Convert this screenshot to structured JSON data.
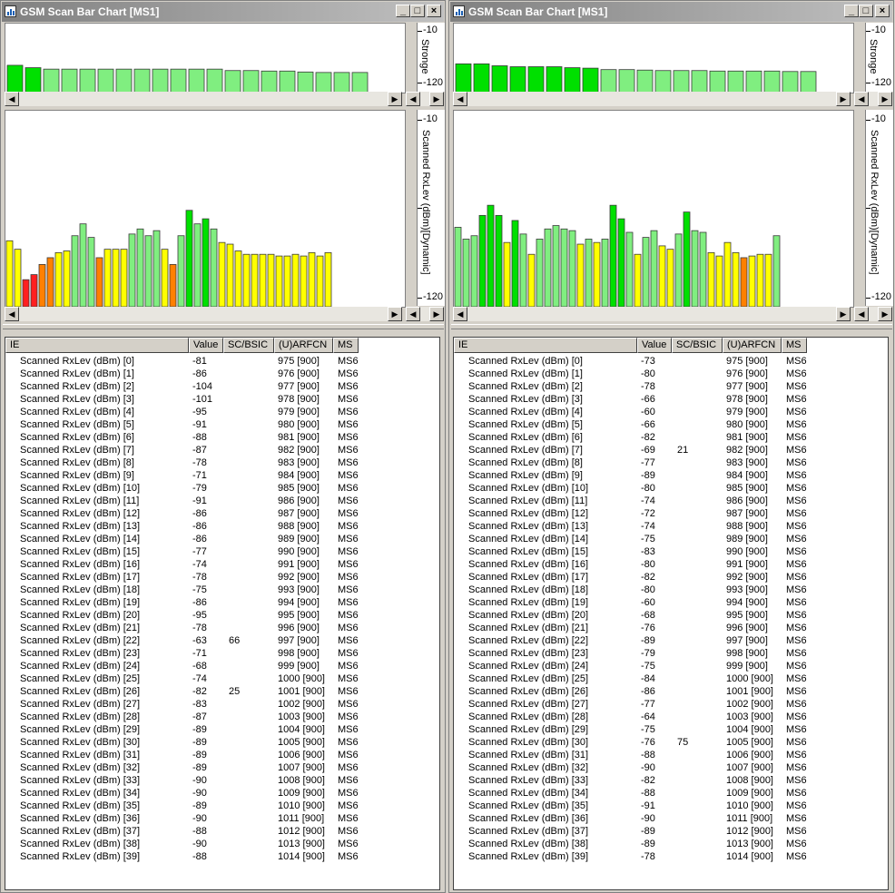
{
  "colors": {
    "strong": "#00e000",
    "good": "#80ee80",
    "medium": "#ffff00",
    "weak": "#ff8000",
    "poor": "#ff2020",
    "frame": "#d4d0c8"
  },
  "icons": {
    "window": "bar-chart-app-icon",
    "minimize": "minimize-icon",
    "maximize": "maximize-icon",
    "close": "close-icon",
    "left": "arrow-left-icon",
    "right": "arrow-right-icon"
  },
  "windows": [
    {
      "title": "GSM Scan Bar Chart [MS1]",
      "strongest_axis": {
        "label": "Stronge",
        "top": "-10",
        "bottom": "-120"
      },
      "scanned_axis": {
        "label": "Scanned RxLev (dBm)[Dynamic]",
        "top": "-10",
        "bottom": "-120"
      },
      "columns": [
        "IE",
        "Value",
        "SC/BSIC",
        "(U)ARFCN",
        "MS"
      ],
      "rows": [
        {
          "ie": "Scanned RxLev (dBm) [0]",
          "value": "-81",
          "bsic": "",
          "arfcn": "975 [900]",
          "ms": "MS6"
        },
        {
          "ie": "Scanned RxLev (dBm) [1]",
          "value": "-86",
          "bsic": "",
          "arfcn": "976 [900]",
          "ms": "MS6"
        },
        {
          "ie": "Scanned RxLev (dBm) [2]",
          "value": "-104",
          "bsic": "",
          "arfcn": "977 [900]",
          "ms": "MS6"
        },
        {
          "ie": "Scanned RxLev (dBm) [3]",
          "value": "-101",
          "bsic": "",
          "arfcn": "978 [900]",
          "ms": "MS6"
        },
        {
          "ie": "Scanned RxLev (dBm) [4]",
          "value": "-95",
          "bsic": "",
          "arfcn": "979 [900]",
          "ms": "MS6"
        },
        {
          "ie": "Scanned RxLev (dBm) [5]",
          "value": "-91",
          "bsic": "",
          "arfcn": "980 [900]",
          "ms": "MS6"
        },
        {
          "ie": "Scanned RxLev (dBm) [6]",
          "value": "-88",
          "bsic": "",
          "arfcn": "981 [900]",
          "ms": "MS6"
        },
        {
          "ie": "Scanned RxLev (dBm) [7]",
          "value": "-87",
          "bsic": "",
          "arfcn": "982 [900]",
          "ms": "MS6"
        },
        {
          "ie": "Scanned RxLev (dBm) [8]",
          "value": "-78",
          "bsic": "",
          "arfcn": "983 [900]",
          "ms": "MS6"
        },
        {
          "ie": "Scanned RxLev (dBm) [9]",
          "value": "-71",
          "bsic": "",
          "arfcn": "984 [900]",
          "ms": "MS6"
        },
        {
          "ie": "Scanned RxLev (dBm) [10]",
          "value": "-79",
          "bsic": "",
          "arfcn": "985 [900]",
          "ms": "MS6"
        },
        {
          "ie": "Scanned RxLev (dBm) [11]",
          "value": "-91",
          "bsic": "",
          "arfcn": "986 [900]",
          "ms": "MS6"
        },
        {
          "ie": "Scanned RxLev (dBm) [12]",
          "value": "-86",
          "bsic": "",
          "arfcn": "987 [900]",
          "ms": "MS6"
        },
        {
          "ie": "Scanned RxLev (dBm) [13]",
          "value": "-86",
          "bsic": "",
          "arfcn": "988 [900]",
          "ms": "MS6"
        },
        {
          "ie": "Scanned RxLev (dBm) [14]",
          "value": "-86",
          "bsic": "",
          "arfcn": "989 [900]",
          "ms": "MS6"
        },
        {
          "ie": "Scanned RxLev (dBm) [15]",
          "value": "-77",
          "bsic": "",
          "arfcn": "990 [900]",
          "ms": "MS6"
        },
        {
          "ie": "Scanned RxLev (dBm) [16]",
          "value": "-74",
          "bsic": "",
          "arfcn": "991 [900]",
          "ms": "MS6"
        },
        {
          "ie": "Scanned RxLev (dBm) [17]",
          "value": "-78",
          "bsic": "",
          "arfcn": "992 [900]",
          "ms": "MS6"
        },
        {
          "ie": "Scanned RxLev (dBm) [18]",
          "value": "-75",
          "bsic": "",
          "arfcn": "993 [900]",
          "ms": "MS6"
        },
        {
          "ie": "Scanned RxLev (dBm) [19]",
          "value": "-86",
          "bsic": "",
          "arfcn": "994 [900]",
          "ms": "MS6"
        },
        {
          "ie": "Scanned RxLev (dBm) [20]",
          "value": "-95",
          "bsic": "",
          "arfcn": "995 [900]",
          "ms": "MS6"
        },
        {
          "ie": "Scanned RxLev (dBm) [21]",
          "value": "-78",
          "bsic": "",
          "arfcn": "996 [900]",
          "ms": "MS6"
        },
        {
          "ie": "Scanned RxLev (dBm) [22]",
          "value": "-63",
          "bsic": "66",
          "arfcn": "997 [900]",
          "ms": "MS6"
        },
        {
          "ie": "Scanned RxLev (dBm) [23]",
          "value": "-71",
          "bsic": "",
          "arfcn": "998 [900]",
          "ms": "MS6"
        },
        {
          "ie": "Scanned RxLev (dBm) [24]",
          "value": "-68",
          "bsic": "",
          "arfcn": "999 [900]",
          "ms": "MS6"
        },
        {
          "ie": "Scanned RxLev (dBm) [25]",
          "value": "-74",
          "bsic": "",
          "arfcn": "1000 [900]",
          "ms": "MS6"
        },
        {
          "ie": "Scanned RxLev (dBm) [26]",
          "value": "-82",
          "bsic": "25",
          "arfcn": "1001 [900]",
          "ms": "MS6"
        },
        {
          "ie": "Scanned RxLev (dBm) [27]",
          "value": "-83",
          "bsic": "",
          "arfcn": "1002 [900]",
          "ms": "MS6"
        },
        {
          "ie": "Scanned RxLev (dBm) [28]",
          "value": "-87",
          "bsic": "",
          "arfcn": "1003 [900]",
          "ms": "MS6"
        },
        {
          "ie": "Scanned RxLev (dBm) [29]",
          "value": "-89",
          "bsic": "",
          "arfcn": "1004 [900]",
          "ms": "MS6"
        },
        {
          "ie": "Scanned RxLev (dBm) [30]",
          "value": "-89",
          "bsic": "",
          "arfcn": "1005 [900]",
          "ms": "MS6"
        },
        {
          "ie": "Scanned RxLev (dBm) [31]",
          "value": "-89",
          "bsic": "",
          "arfcn": "1006 [900]",
          "ms": "MS6"
        },
        {
          "ie": "Scanned RxLev (dBm) [32]",
          "value": "-89",
          "bsic": "",
          "arfcn": "1007 [900]",
          "ms": "MS6"
        },
        {
          "ie": "Scanned RxLev (dBm) [33]",
          "value": "-90",
          "bsic": "",
          "arfcn": "1008 [900]",
          "ms": "MS6"
        },
        {
          "ie": "Scanned RxLev (dBm) [34]",
          "value": "-90",
          "bsic": "",
          "arfcn": "1009 [900]",
          "ms": "MS6"
        },
        {
          "ie": "Scanned RxLev (dBm) [35]",
          "value": "-89",
          "bsic": "",
          "arfcn": "1010 [900]",
          "ms": "MS6"
        },
        {
          "ie": "Scanned RxLev (dBm) [36]",
          "value": "-90",
          "bsic": "",
          "arfcn": "1011 [900]",
          "ms": "MS6"
        },
        {
          "ie": "Scanned RxLev (dBm) [37]",
          "value": "-88",
          "bsic": "",
          "arfcn": "1012 [900]",
          "ms": "MS6"
        },
        {
          "ie": "Scanned RxLev (dBm) [38]",
          "value": "-90",
          "bsic": "",
          "arfcn": "1013 [900]",
          "ms": "MS6"
        },
        {
          "ie": "Scanned RxLev (dBm) [39]",
          "value": "-88",
          "bsic": "",
          "arfcn": "1014 [900]",
          "ms": "MS6"
        }
      ]
    },
    {
      "title": "GSM Scan Bar Chart [MS1]",
      "strongest_axis": {
        "label": "Stronge",
        "top": "-10",
        "bottom": "-120"
      },
      "scanned_axis": {
        "label": "Scanned RxLev (dBm)[Dynamic]",
        "top": "-10",
        "bottom": "-120"
      },
      "columns": [
        "IE",
        "Value",
        "SC/BSIC",
        "(U)ARFCN",
        "MS"
      ],
      "rows": [
        {
          "ie": "Scanned RxLev (dBm) [0]",
          "value": "-73",
          "bsic": "",
          "arfcn": "975 [900]",
          "ms": "MS6"
        },
        {
          "ie": "Scanned RxLev (dBm) [1]",
          "value": "-80",
          "bsic": "",
          "arfcn": "976 [900]",
          "ms": "MS6"
        },
        {
          "ie": "Scanned RxLev (dBm) [2]",
          "value": "-78",
          "bsic": "",
          "arfcn": "977 [900]",
          "ms": "MS6"
        },
        {
          "ie": "Scanned RxLev (dBm) [3]",
          "value": "-66",
          "bsic": "",
          "arfcn": "978 [900]",
          "ms": "MS6"
        },
        {
          "ie": "Scanned RxLev (dBm) [4]",
          "value": "-60",
          "bsic": "",
          "arfcn": "979 [900]",
          "ms": "MS6"
        },
        {
          "ie": "Scanned RxLev (dBm) [5]",
          "value": "-66",
          "bsic": "",
          "arfcn": "980 [900]",
          "ms": "MS6"
        },
        {
          "ie": "Scanned RxLev (dBm) [6]",
          "value": "-82",
          "bsic": "",
          "arfcn": "981 [900]",
          "ms": "MS6"
        },
        {
          "ie": "Scanned RxLev (dBm) [7]",
          "value": "-69",
          "bsic": "21",
          "arfcn": "982 [900]",
          "ms": "MS6"
        },
        {
          "ie": "Scanned RxLev (dBm) [8]",
          "value": "-77",
          "bsic": "",
          "arfcn": "983 [900]",
          "ms": "MS6"
        },
        {
          "ie": "Scanned RxLev (dBm) [9]",
          "value": "-89",
          "bsic": "",
          "arfcn": "984 [900]",
          "ms": "MS6"
        },
        {
          "ie": "Scanned RxLev (dBm) [10]",
          "value": "-80",
          "bsic": "",
          "arfcn": "985 [900]",
          "ms": "MS6"
        },
        {
          "ie": "Scanned RxLev (dBm) [11]",
          "value": "-74",
          "bsic": "",
          "arfcn": "986 [900]",
          "ms": "MS6"
        },
        {
          "ie": "Scanned RxLev (dBm) [12]",
          "value": "-72",
          "bsic": "",
          "arfcn": "987 [900]",
          "ms": "MS6"
        },
        {
          "ie": "Scanned RxLev (dBm) [13]",
          "value": "-74",
          "bsic": "",
          "arfcn": "988 [900]",
          "ms": "MS6"
        },
        {
          "ie": "Scanned RxLev (dBm) [14]",
          "value": "-75",
          "bsic": "",
          "arfcn": "989 [900]",
          "ms": "MS6"
        },
        {
          "ie": "Scanned RxLev (dBm) [15]",
          "value": "-83",
          "bsic": "",
          "arfcn": "990 [900]",
          "ms": "MS6"
        },
        {
          "ie": "Scanned RxLev (dBm) [16]",
          "value": "-80",
          "bsic": "",
          "arfcn": "991 [900]",
          "ms": "MS6"
        },
        {
          "ie": "Scanned RxLev (dBm) [17]",
          "value": "-82",
          "bsic": "",
          "arfcn": "992 [900]",
          "ms": "MS6"
        },
        {
          "ie": "Scanned RxLev (dBm) [18]",
          "value": "-80",
          "bsic": "",
          "arfcn": "993 [900]",
          "ms": "MS6"
        },
        {
          "ie": "Scanned RxLev (dBm) [19]",
          "value": "-60",
          "bsic": "",
          "arfcn": "994 [900]",
          "ms": "MS6"
        },
        {
          "ie": "Scanned RxLev (dBm) [20]",
          "value": "-68",
          "bsic": "",
          "arfcn": "995 [900]",
          "ms": "MS6"
        },
        {
          "ie": "Scanned RxLev (dBm) [21]",
          "value": "-76",
          "bsic": "",
          "arfcn": "996 [900]",
          "ms": "MS6"
        },
        {
          "ie": "Scanned RxLev (dBm) [22]",
          "value": "-89",
          "bsic": "",
          "arfcn": "997 [900]",
          "ms": "MS6"
        },
        {
          "ie": "Scanned RxLev (dBm) [23]",
          "value": "-79",
          "bsic": "",
          "arfcn": "998 [900]",
          "ms": "MS6"
        },
        {
          "ie": "Scanned RxLev (dBm) [24]",
          "value": "-75",
          "bsic": "",
          "arfcn": "999 [900]",
          "ms": "MS6"
        },
        {
          "ie": "Scanned RxLev (dBm) [25]",
          "value": "-84",
          "bsic": "",
          "arfcn": "1000 [900]",
          "ms": "MS6"
        },
        {
          "ie": "Scanned RxLev (dBm) [26]",
          "value": "-86",
          "bsic": "",
          "arfcn": "1001 [900]",
          "ms": "MS6"
        },
        {
          "ie": "Scanned RxLev (dBm) [27]",
          "value": "-77",
          "bsic": "",
          "arfcn": "1002 [900]",
          "ms": "MS6"
        },
        {
          "ie": "Scanned RxLev (dBm) [28]",
          "value": "-64",
          "bsic": "",
          "arfcn": "1003 [900]",
          "ms": "MS6"
        },
        {
          "ie": "Scanned RxLev (dBm) [29]",
          "value": "-75",
          "bsic": "",
          "arfcn": "1004 [900]",
          "ms": "MS6"
        },
        {
          "ie": "Scanned RxLev (dBm) [30]",
          "value": "-76",
          "bsic": "75",
          "arfcn": "1005 [900]",
          "ms": "MS6"
        },
        {
          "ie": "Scanned RxLev (dBm) [31]",
          "value": "-88",
          "bsic": "",
          "arfcn": "1006 [900]",
          "ms": "MS6"
        },
        {
          "ie": "Scanned RxLev (dBm) [32]",
          "value": "-90",
          "bsic": "",
          "arfcn": "1007 [900]",
          "ms": "MS6"
        },
        {
          "ie": "Scanned RxLev (dBm) [33]",
          "value": "-82",
          "bsic": "",
          "arfcn": "1008 [900]",
          "ms": "MS6"
        },
        {
          "ie": "Scanned RxLev (dBm) [34]",
          "value": "-88",
          "bsic": "",
          "arfcn": "1009 [900]",
          "ms": "MS6"
        },
        {
          "ie": "Scanned RxLev (dBm) [35]",
          "value": "-91",
          "bsic": "",
          "arfcn": "1010 [900]",
          "ms": "MS6"
        },
        {
          "ie": "Scanned RxLev (dBm) [36]",
          "value": "-90",
          "bsic": "",
          "arfcn": "1011 [900]",
          "ms": "MS6"
        },
        {
          "ie": "Scanned RxLev (dBm) [37]",
          "value": "-89",
          "bsic": "",
          "arfcn": "1012 [900]",
          "ms": "MS6"
        },
        {
          "ie": "Scanned RxLev (dBm) [38]",
          "value": "-89",
          "bsic": "",
          "arfcn": "1013 [900]",
          "ms": "MS6"
        },
        {
          "ie": "Scanned RxLev (dBm) [39]",
          "value": "-78",
          "bsic": "",
          "arfcn": "1014 [900]",
          "ms": "MS6"
        }
      ]
    }
  ],
  "chart_data": [
    {
      "type": "bar",
      "ylim": [
        -120,
        -10
      ],
      "values": [
        -63,
        -68,
        -71,
        -71,
        -71,
        -71,
        -71,
        -71,
        -71,
        -71,
        -71,
        -71,
        -74,
        -74,
        -75,
        -75,
        -77,
        -78,
        -78,
        -78
      ]
    },
    {
      "type": "bar",
      "ylim": [
        -120,
        -10
      ],
      "values": [
        -81,
        -86,
        -104,
        -101,
        -95,
        -91,
        -88,
        -87,
        -78,
        -71,
        -79,
        -91,
        -86,
        -86,
        -86,
        -77,
        -74,
        -78,
        -75,
        -86,
        -95,
        -78,
        -63,
        -71,
        -68,
        -74,
        -82,
        -83,
        -87,
        -89,
        -89,
        -89,
        -89,
        -90,
        -90,
        -89,
        -90,
        -88,
        -90,
        -88
      ]
    },
    {
      "type": "bar",
      "ylim": [
        -120,
        -10
      ],
      "values": [
        -60,
        -60,
        -64,
        -66,
        -66,
        -66,
        -68,
        -69,
        -72,
        -72,
        -73,
        -74,
        -74,
        -74,
        -75,
        -75,
        -75,
        -75,
        -76,
        -76
      ]
    },
    {
      "type": "bar",
      "ylim": [
        -120,
        -10
      ],
      "values": [
        -73,
        -80,
        -78,
        -66,
        -60,
        -66,
        -82,
        -69,
        -77,
        -89,
        -80,
        -74,
        -72,
        -74,
        -75,
        -83,
        -80,
        -82,
        -80,
        -60,
        -68,
        -76,
        -89,
        -79,
        -75,
        -84,
        -86,
        -77,
        -64,
        -75,
        -76,
        -88,
        -90,
        -82,
        -88,
        -91,
        -90,
        -89,
        -89,
        -78
      ]
    }
  ]
}
